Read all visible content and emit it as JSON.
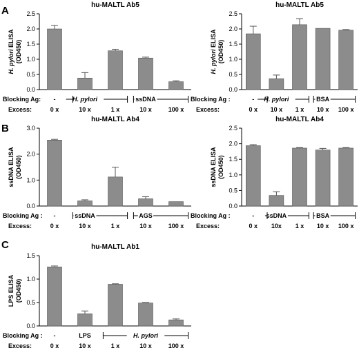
{
  "panels": [
    {
      "id": "A",
      "label": "A"
    },
    {
      "id": "B",
      "label": "B"
    },
    {
      "id": "C",
      "label": "C"
    }
  ],
  "row_labels": {
    "blocking": "Blocking Ag :",
    "blocking_nospace": "Blocking Ag:",
    "excess": "Excess:"
  },
  "chart_data": [
    {
      "panel": "A",
      "type": "bar",
      "title": "hu-MALTL Ab5",
      "ylabel_lines": [
        "H. pylori ELISA",
        "(OD450)"
      ],
      "ylabel_italic_part": "H. pylori",
      "ylim": [
        0,
        2.5
      ],
      "yticks": [
        "0.0",
        "0.5",
        "1.0",
        "1.5",
        "2.0",
        "2.5"
      ],
      "ytick_values": [
        0,
        0.5,
        1.0,
        1.5,
        2.0,
        2.5
      ],
      "values": [
        2.0,
        0.38,
        1.28,
        1.04,
        0.26
      ],
      "errors": [
        0.12,
        0.18,
        0.05,
        0.03,
        0.03
      ],
      "blocking_row_label": "Blocking Ag",
      "blocking": [
        "-",
        "H. pylori",
        "",
        "ssDNA",
        ""
      ],
      "blocking_italic": [
        false,
        true,
        false,
        false,
        false
      ],
      "blocking_brackets": [
        [
          1,
          2
        ],
        [
          3,
          4
        ]
      ],
      "excess": [
        "0 x",
        "10 x",
        "1 x",
        "10 x",
        "100 x"
      ]
    },
    {
      "panel": "A",
      "type": "bar",
      "title": "hu-MALTL Ab5",
      "ylabel_lines": [
        "H. pylori ELISA",
        "(OD450)"
      ],
      "ylabel_italic_part": "H. pylori",
      "ylim": [
        0,
        2.5
      ],
      "yticks": [
        "0.0",
        "0.5",
        "1.0",
        "1.5",
        "2.0",
        "2.5"
      ],
      "ytick_values": [
        0,
        0.5,
        1.0,
        1.5,
        2.0,
        2.5
      ],
      "values": [
        1.84,
        0.36,
        2.14,
        2.02,
        1.96
      ],
      "errors": [
        0.25,
        0.12,
        0.2,
        0.0,
        0.02
      ],
      "blocking_row_label": "Blocking Ag :",
      "blocking": [
        "-",
        "H. pylori",
        "",
        "BSA",
        ""
      ],
      "blocking_italic": [
        false,
        true,
        false,
        false,
        false
      ],
      "blocking_brackets": [
        [
          1,
          2
        ],
        [
          3,
          4
        ]
      ],
      "excess": [
        "0 x",
        "10 x",
        "1 x",
        "10 x",
        "100 x"
      ]
    },
    {
      "panel": "B",
      "type": "bar",
      "title": "hu-MALTL Ab4",
      "ylabel_lines": [
        "ssDNA ELISA",
        "(OD450)"
      ],
      "ylabel_italic_part": "",
      "ylim": [
        0,
        3.0
      ],
      "yticks": [
        "0.0",
        "1.0",
        "2.0",
        "3.0"
      ],
      "ytick_values": [
        0,
        1.0,
        2.0,
        3.0
      ],
      "values": [
        2.54,
        0.2,
        1.12,
        0.28,
        0.17
      ],
      "errors": [
        0.03,
        0.04,
        0.38,
        0.08,
        0.0
      ],
      "blocking_row_label": "Blocking Ag :",
      "blocking": [
        "-",
        "ssDNA",
        "",
        "AGS",
        ""
      ],
      "blocking_italic": [
        false,
        false,
        false,
        false,
        false
      ],
      "blocking_brackets": [
        [
          1,
          2
        ],
        [
          3,
          4
        ]
      ],
      "excess": [
        "0 x",
        "10 x",
        "1 x",
        "10 x",
        "100 x"
      ]
    },
    {
      "panel": "B",
      "type": "bar",
      "title": "hu-MALTL Ab4",
      "ylabel_lines": [
        "ssDNA ELISA",
        "(OD450)"
      ],
      "ylabel_italic_part": "",
      "ylim": [
        0,
        2.5
      ],
      "yticks": [
        "0.0",
        "0.5",
        "1.0",
        "1.5",
        "2.0",
        "2.5"
      ],
      "ytick_values": [
        0,
        0.5,
        1.0,
        1.5,
        2.0,
        2.5
      ],
      "values": [
        1.94,
        0.34,
        1.86,
        1.8,
        1.86
      ],
      "errors": [
        0.03,
        0.12,
        0.02,
        0.05,
        0.02
      ],
      "blocking_row_label": "Blocking Ag :",
      "blocking": [
        "-",
        "ssDNA",
        "",
        "BSA",
        ""
      ],
      "blocking_italic": [
        false,
        false,
        false,
        false,
        false
      ],
      "blocking_brackets": [
        [
          1,
          2
        ],
        [
          3,
          4
        ]
      ],
      "excess": [
        "0 x",
        "10x",
        "1 x",
        "10 x",
        "100 x"
      ]
    },
    {
      "panel": "C",
      "type": "bar",
      "title": "hu-MALTL Ab1",
      "ylabel_lines": [
        "LPS ELISA",
        "(OD450)"
      ],
      "ylabel_italic_part": "",
      "ylim": [
        0,
        1.5
      ],
      "yticks": [
        "0.0",
        "0.5",
        "1.0",
        "1.5"
      ],
      "ytick_values": [
        0,
        0.5,
        1.0,
        1.5
      ],
      "values": [
        1.26,
        0.26,
        0.89,
        0.49,
        0.13
      ],
      "errors": [
        0.02,
        0.06,
        0.01,
        0.01,
        0.02
      ],
      "blocking_row_label": "Blocking Ag :",
      "blocking": [
        "-",
        "LPS",
        "H. pylori",
        "",
        ""
      ],
      "blocking_italic": [
        false,
        false,
        true,
        false,
        false
      ],
      "blocking_brackets": [
        [
          2,
          4
        ]
      ],
      "blocking_bracket_label_index": 2,
      "excess": [
        "0 x",
        "10 x",
        "1 x",
        "10 x",
        "100 x"
      ]
    }
  ]
}
